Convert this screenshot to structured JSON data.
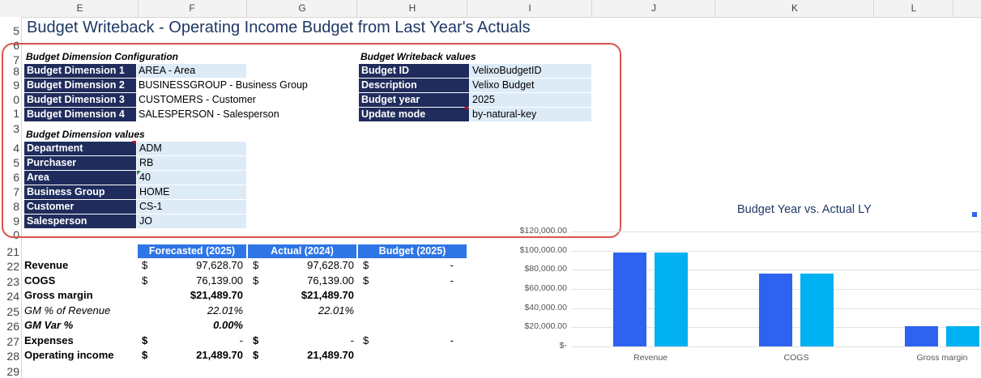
{
  "columns": [
    "E",
    "F",
    "G",
    "H",
    "I",
    "J",
    "K",
    "L"
  ],
  "rows": [
    "5",
    "6",
    "7",
    "8",
    "9",
    "0",
    "1",
    "3",
    "4",
    "5",
    "6",
    "7",
    "8",
    "9",
    "0",
    "21",
    "22",
    "23",
    "24",
    "25",
    "26",
    "27",
    "28",
    "29"
  ],
  "title": "Budget Writeback - Operating Income Budget from Last Year's Actuals",
  "dim_config": {
    "heading": "Budget Dimension Configuration",
    "rows": [
      {
        "label": "Budget Dimension 1",
        "value": "AREA - Area"
      },
      {
        "label": "Budget Dimension 2",
        "value": "BUSINESSGROUP - Business Group"
      },
      {
        "label": "Budget Dimension 3",
        "value": "CUSTOMERS - Customer"
      },
      {
        "label": "Budget Dimension 4",
        "value": "SALESPERSON - Salesperson"
      }
    ]
  },
  "writeback": {
    "heading": "Budget Writeback values",
    "rows": [
      {
        "label": "Budget ID",
        "value": "VelixoBudgetID"
      },
      {
        "label": "Description",
        "value": "Velixo Budget"
      },
      {
        "label": "Budget year",
        "value": "2025"
      },
      {
        "label": "Update mode",
        "value": "by-natural-key"
      }
    ]
  },
  "dim_values": {
    "heading": "Budget Dimension values",
    "rows": [
      {
        "label": "Department",
        "value": "ADM"
      },
      {
        "label": "Purchaser",
        "value": "RB"
      },
      {
        "label": "Area",
        "value": "40"
      },
      {
        "label": "Business Group",
        "value": "HOME"
      },
      {
        "label": "Customer",
        "value": "CS-1"
      },
      {
        "label": "Salesperson",
        "value": "JO"
      }
    ]
  },
  "table": {
    "headers": [
      "Forecasted (2025)",
      "Actual (2024)",
      "Budget (2025)"
    ],
    "rows": [
      {
        "label": "Revenue",
        "bold": true,
        "c1": "$",
        "v1": "97,628.70",
        "c2": "$",
        "v2": "97,628.70",
        "c3": "$",
        "v3": "-"
      },
      {
        "label": "COGS",
        "bold": true,
        "c1": "$",
        "v1": "76,139.00",
        "c2": "$",
        "v2": "76,139.00",
        "c3": "$",
        "v3": "-"
      },
      {
        "label": "Gross margin",
        "bold": true,
        "c1": "",
        "v1": "$21,489.70",
        "c2": "",
        "v2": "$21,489.70",
        "c3": "",
        "v3": ""
      },
      {
        "label": "GM % of Revenue",
        "italic": true,
        "c1": "",
        "v1": "22.01%",
        "c2": "",
        "v2": "22.01%",
        "c3": "",
        "v3": ""
      },
      {
        "label": "GM Var %",
        "bold": true,
        "italic": true,
        "c1": "",
        "v1": "0.00%",
        "c2": "",
        "v2": "",
        "c3": "",
        "v3": ""
      },
      {
        "label": "Expenses",
        "bold": true,
        "c1": "$",
        "v1": "-",
        "c2": "$",
        "v2": "-",
        "c3": "$",
        "v3": "-"
      },
      {
        "label": "Operating income",
        "bold": true,
        "c1": "$",
        "v1": "21,489.70",
        "c2": "$",
        "v2": "21,489.70",
        "c3": "",
        "v3": ""
      }
    ]
  },
  "chart_data": {
    "type": "bar",
    "title": "Budget Year vs. Actual LY",
    "categories": [
      "Revenue",
      "COGS",
      "Gross margin"
    ],
    "series": [
      {
        "values": [
          97628.7,
          76139.0,
          21489.7
        ],
        "color": "#2e62f0"
      },
      {
        "values": [
          97628.7,
          76139.0,
          21489.7
        ],
        "color": "#00b0f0"
      }
    ],
    "ylim": [
      0,
      120000
    ],
    "yticks": [
      "$-",
      "$20,000.00",
      "$40,000.00",
      "$60,000.00",
      "$80,000.00",
      "$100,000.00",
      "$120,000.00"
    ],
    "grid": true
  }
}
